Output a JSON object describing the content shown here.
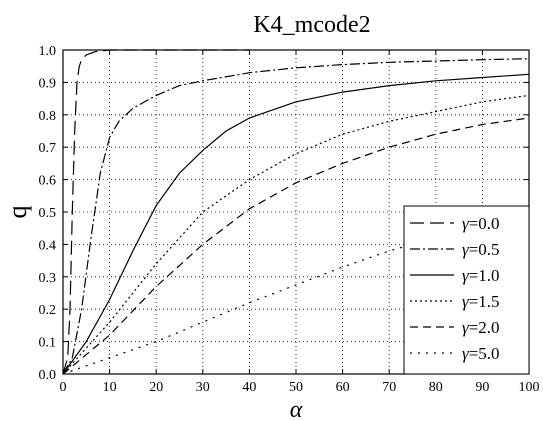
{
  "chart_data": {
    "type": "line",
    "title": "K4_mcode2",
    "xlabel": "α",
    "ylabel": "q",
    "xlim": [
      0,
      100
    ],
    "ylim": [
      0,
      1.0
    ],
    "xticks": [
      0,
      10,
      20,
      30,
      40,
      50,
      60,
      70,
      80,
      90,
      100
    ],
    "yticks": [
      0.0,
      0.1,
      0.2,
      0.3,
      0.4,
      0.5,
      0.6,
      0.7,
      0.8,
      0.9,
      1.0
    ],
    "ytick_labels": [
      "0.0",
      "0.1",
      "0.2",
      "0.3",
      "0.4",
      "0.5",
      "0.6",
      "0.7",
      "0.8",
      "0.9",
      "1.0"
    ],
    "grid": true,
    "legend_position": "bottom-right",
    "series": [
      {
        "name": "γ=0.0",
        "gamma_symbol": "γ",
        "gamma_value": "=0.0",
        "dash": "14 6",
        "points": [
          [
            0,
            0
          ],
          [
            1,
            0.05
          ],
          [
            1.5,
            0.2
          ],
          [
            2,
            0.5
          ],
          [
            2.5,
            0.75
          ],
          [
            3,
            0.9
          ],
          [
            3.5,
            0.95
          ],
          [
            4,
            0.97
          ],
          [
            5,
            0.985
          ],
          [
            7,
            0.995
          ],
          [
            10,
            1.0
          ],
          [
            40,
            1.0
          ]
        ]
      },
      {
        "name": "γ=0.5",
        "gamma_symbol": "γ",
        "gamma_value": "=0.5",
        "dash": "10 3 2 3",
        "points": [
          [
            0,
            0
          ],
          [
            2,
            0.05
          ],
          [
            4,
            0.2
          ],
          [
            6,
            0.42
          ],
          [
            8,
            0.62
          ],
          [
            10,
            0.73
          ],
          [
            12,
            0.78
          ],
          [
            15,
            0.82
          ],
          [
            20,
            0.86
          ],
          [
            25,
            0.89
          ],
          [
            30,
            0.905
          ],
          [
            40,
            0.93
          ],
          [
            50,
            0.945
          ],
          [
            60,
            0.955
          ],
          [
            70,
            0.962
          ],
          [
            80,
            0.966
          ],
          [
            90,
            0.97
          ],
          [
            100,
            0.973
          ]
        ]
      },
      {
        "name": "γ=1.0",
        "gamma_symbol": "γ",
        "gamma_value": "=1.0",
        "dash": "",
        "points": [
          [
            0,
            0
          ],
          [
            5,
            0.1
          ],
          [
            10,
            0.23
          ],
          [
            15,
            0.38
          ],
          [
            20,
            0.52
          ],
          [
            25,
            0.62
          ],
          [
            30,
            0.69
          ],
          [
            35,
            0.75
          ],
          [
            40,
            0.79
          ],
          [
            50,
            0.84
          ],
          [
            60,
            0.87
          ],
          [
            70,
            0.89
          ],
          [
            80,
            0.905
          ],
          [
            90,
            0.915
          ],
          [
            100,
            0.925
          ]
        ]
      },
      {
        "name": "γ=1.5",
        "gamma_symbol": "γ",
        "gamma_value": "=1.5",
        "dash": "2 3",
        "points": [
          [
            0,
            0
          ],
          [
            10,
            0.16
          ],
          [
            20,
            0.34
          ],
          [
            30,
            0.5
          ],
          [
            40,
            0.6
          ],
          [
            50,
            0.68
          ],
          [
            60,
            0.74
          ],
          [
            70,
            0.78
          ],
          [
            80,
            0.81
          ],
          [
            90,
            0.84
          ],
          [
            100,
            0.86
          ]
        ]
      },
      {
        "name": "γ=2.0",
        "gamma_symbol": "γ",
        "gamma_value": "=2.0",
        "dash": "8 5",
        "points": [
          [
            0,
            0
          ],
          [
            10,
            0.12
          ],
          [
            20,
            0.27
          ],
          [
            30,
            0.4
          ],
          [
            40,
            0.51
          ],
          [
            50,
            0.59
          ],
          [
            60,
            0.65
          ],
          [
            70,
            0.7
          ],
          [
            80,
            0.74
          ],
          [
            90,
            0.77
          ],
          [
            100,
            0.79
          ]
        ]
      },
      {
        "name": "γ=5.0",
        "gamma_symbol": "γ",
        "gamma_value": "=5.0",
        "dash": "2 6",
        "points": [
          [
            0,
            0
          ],
          [
            20,
            0.1
          ],
          [
            40,
            0.22
          ],
          [
            60,
            0.33
          ],
          [
            70,
            0.38
          ],
          [
            75,
            0.4
          ]
        ]
      }
    ]
  }
}
